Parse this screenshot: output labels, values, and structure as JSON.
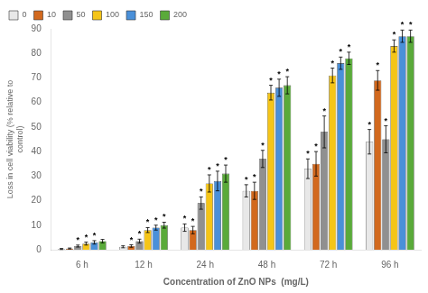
{
  "chart_data": {
    "type": "bar",
    "categories": [
      "6 h",
      "12 h",
      "24 h",
      "48 h",
      "72 h",
      "96 h"
    ],
    "series": [
      {
        "name": "0",
        "color": "#e8e8e8",
        "values": [
          0.3,
          1.2,
          9.0,
          24.0,
          33.0,
          44.0
        ],
        "errors": [
          0.2,
          0.4,
          1.5,
          2.5,
          4.0,
          5.0
        ],
        "annotations": [
          null,
          null,
          "*",
          "*",
          "*",
          "*"
        ]
      },
      {
        "name": "10",
        "color": "#d2691e",
        "values": [
          0.5,
          1.5,
          8.0,
          24.0,
          35.0,
          69.0
        ],
        "errors": [
          0.2,
          0.5,
          1.5,
          3.5,
          5.0,
          4.0
        ],
        "annotations": [
          null,
          "*",
          "*",
          "*",
          "*",
          "*"
        ]
      },
      {
        "name": "50",
        "color": "#909090",
        "values": [
          1.5,
          3.5,
          19.0,
          37.0,
          48.0,
          45.0
        ],
        "errors": [
          0.4,
          0.8,
          2.5,
          3.5,
          6.5,
          5.5
        ],
        "annotations": [
          "*",
          "*",
          "*",
          "*",
          "*",
          "*"
        ]
      },
      {
        "name": "100",
        "color": "#f5c518",
        "values": [
          2.5,
          8.0,
          27.0,
          64.0,
          71.0,
          83.0
        ],
        "errors": [
          0.6,
          1.0,
          3.5,
          3.0,
          3.0,
          2.5
        ],
        "annotations": [
          "*",
          "*",
          "*",
          "*",
          "*",
          "*"
        ]
      },
      {
        "name": "150",
        "color": "#4a90d9",
        "values": [
          3.0,
          9.0,
          28.0,
          66.0,
          76.0,
          87.0
        ],
        "errors": [
          0.7,
          1.0,
          4.0,
          3.5,
          2.5,
          2.5
        ],
        "annotations": [
          "*",
          "*",
          "*",
          "*",
          "*",
          "*"
        ]
      },
      {
        "name": "200",
        "color": "#5aaa3a",
        "values": [
          3.5,
          10.0,
          31.0,
          67.0,
          78.0,
          87.0
        ],
        "errors": [
          0.7,
          1.2,
          3.5,
          3.5,
          2.5,
          2.5
        ],
        "annotations": [
          null,
          "*",
          "*",
          "*",
          "*",
          "*"
        ]
      }
    ],
    "ylabel": "Loss in cell viability (% relative to\ncontrol)",
    "xlabel": "Concentration of ZnO NPs  (mg/L)",
    "ylim": [
      0,
      90
    ],
    "yticks": [
      0,
      10,
      20,
      30,
      40,
      50,
      60,
      70,
      80,
      90
    ],
    "grid": false,
    "legend": "upper left"
  }
}
